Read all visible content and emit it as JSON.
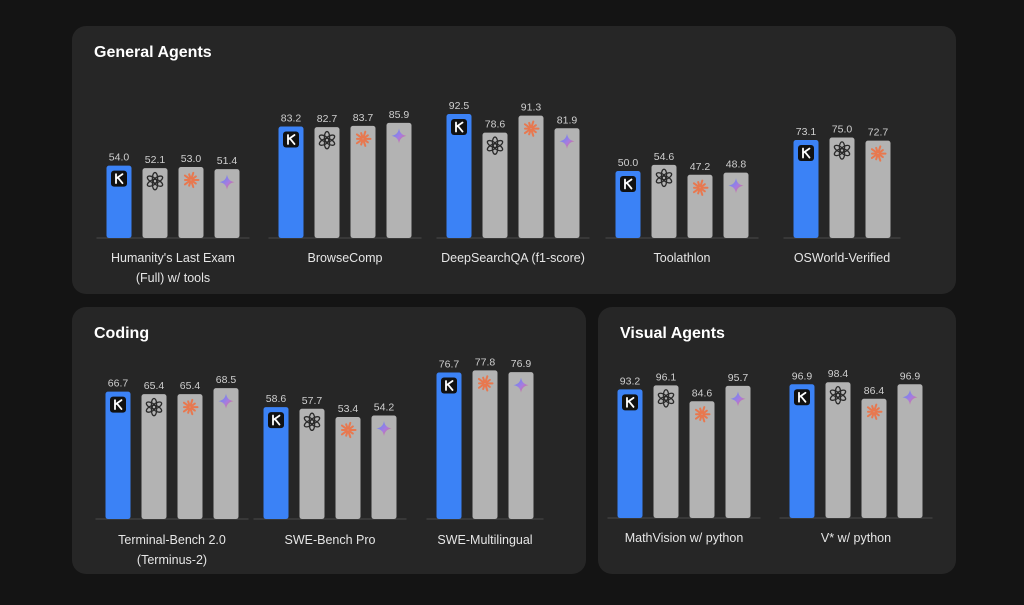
{
  "colors": {
    "kimi": "#3b82f6",
    "other": "#b3b3b3",
    "claude": "#e8784f",
    "gemini_start": "#4f8df7",
    "gemini_end": "#f06a5a",
    "baseline": "#4a4a4a"
  },
  "icons": {
    "kimi": "kimi-k-icon",
    "openai": "openai-icon",
    "claude": "claude-burst-icon",
    "gemini": "gemini-star-icon"
  },
  "panels": {
    "general": {
      "title": "General Agents"
    },
    "coding": {
      "title": "Coding"
    },
    "visual": {
      "title": "Visual Agents"
    }
  },
  "chart_data": [
    {
      "type": "bar",
      "panel": "general",
      "title": "General Agents",
      "series": [
        {
          "icon": "kimi"
        },
        {
          "icon": "openai"
        },
        {
          "icon": "claude"
        },
        {
          "icon": "gemini"
        }
      ],
      "groups": [
        {
          "label": [
            "Humanity's Last Exam",
            "(Full) w/ tools"
          ],
          "models": [
            "kimi",
            "openai",
            "claude",
            "gemini"
          ],
          "values": [
            54.0,
            52.1,
            53.0,
            51.4
          ]
        },
        {
          "label": [
            "BrowseComp"
          ],
          "models": [
            "kimi",
            "openai",
            "claude",
            "gemini"
          ],
          "values": [
            83.2,
            82.7,
            83.7,
            85.9
          ]
        },
        {
          "label": [
            "DeepSearchQA (f1-score)"
          ],
          "models": [
            "kimi",
            "openai",
            "claude",
            "gemini"
          ],
          "values": [
            92.5,
            78.6,
            91.3,
            81.9
          ]
        },
        {
          "label": [
            "Toolathlon"
          ],
          "models": [
            "kimi",
            "openai",
            "claude",
            "gemini"
          ],
          "values": [
            50.0,
            54.6,
            47.2,
            48.8
          ]
        },
        {
          "label": [
            "OSWorld-Verified"
          ],
          "models": [
            "kimi",
            "openai",
            "claude"
          ],
          "values": [
            73.1,
            75.0,
            72.7
          ]
        }
      ]
    },
    {
      "type": "bar",
      "panel": "coding",
      "title": "Coding",
      "groups": [
        {
          "label": [
            "Terminal-Bench 2.0",
            "(Terminus-2)"
          ],
          "models": [
            "kimi",
            "openai",
            "claude",
            "gemini"
          ],
          "values": [
            66.7,
            65.4,
            65.4,
            68.5
          ]
        },
        {
          "label": [
            "SWE-Bench Pro"
          ],
          "models": [
            "kimi",
            "openai",
            "claude",
            "gemini"
          ],
          "values": [
            58.6,
            57.7,
            53.4,
            54.2
          ]
        },
        {
          "label": [
            "SWE-Multilingual"
          ],
          "models": [
            "kimi",
            "claude",
            "gemini"
          ],
          "values": [
            76.7,
            77.8,
            76.9
          ]
        }
      ]
    },
    {
      "type": "bar",
      "panel": "visual",
      "title": "Visual Agents",
      "groups": [
        {
          "label": [
            "MathVision w/ python"
          ],
          "models": [
            "kimi",
            "openai",
            "claude",
            "gemini"
          ],
          "values": [
            93.2,
            96.1,
            84.6,
            95.7
          ]
        },
        {
          "label": [
            "V* w/ python"
          ],
          "models": [
            "kimi",
            "openai",
            "claude",
            "gemini"
          ],
          "values": [
            96.9,
            98.4,
            86.4,
            96.9
          ]
        }
      ]
    }
  ]
}
